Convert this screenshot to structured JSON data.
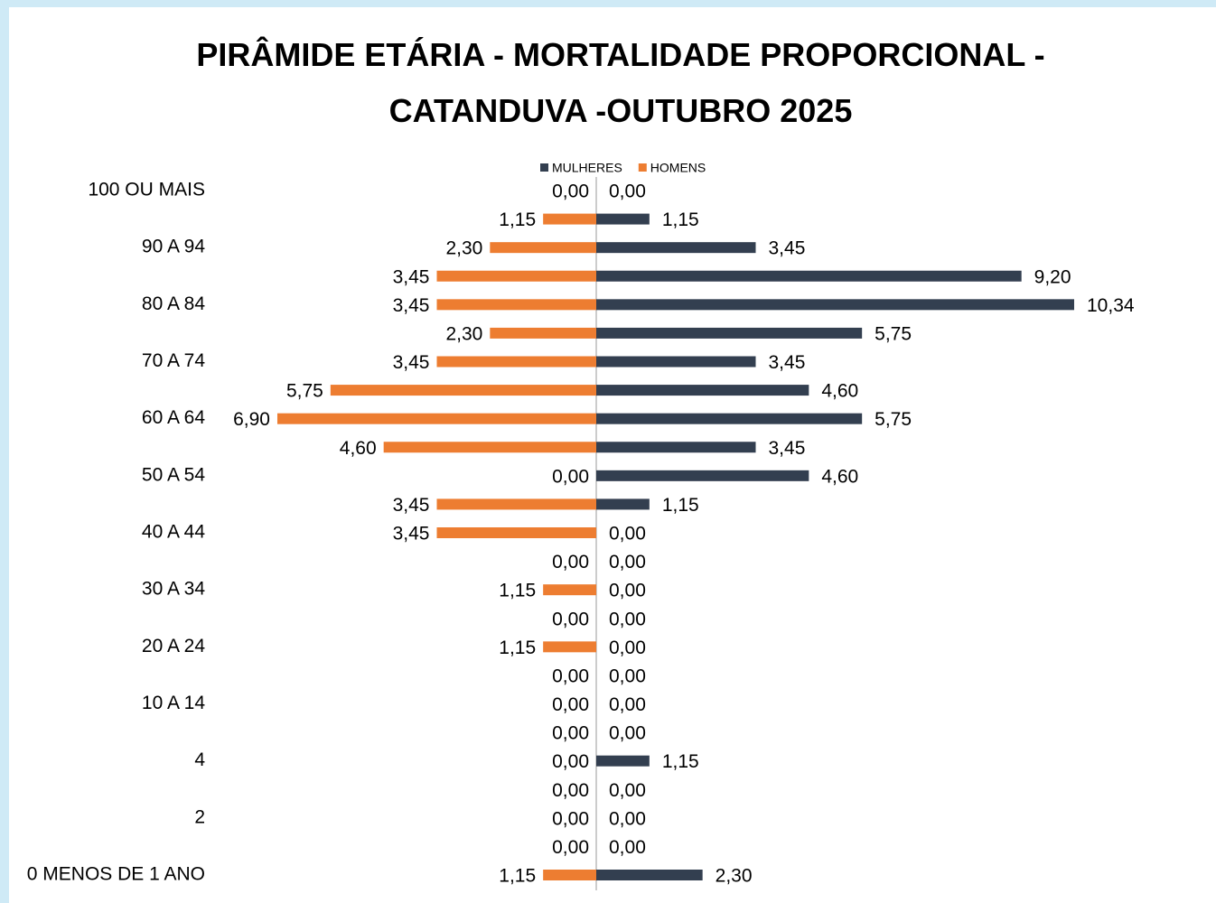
{
  "chart_data": {
    "type": "bar",
    "title": "PIRÂMIDE ETÁRIA - MORTALIDADE PROPORCIONAL - CATANDUVA -OUTUBRO 2025",
    "categories": [
      "100 OU MAIS",
      null,
      "90 A 94",
      null,
      "80 A 84",
      null,
      "70 A 74",
      null,
      "60 A 64",
      null,
      "50 A 54",
      null,
      "40 A 44",
      null,
      "30 A 34",
      null,
      "20 A 24",
      null,
      "10 A 14",
      null,
      "4",
      null,
      "2",
      null,
      "0 MENOS DE 1 ANO"
    ],
    "series": [
      {
        "name": "MULHERES",
        "color": "#333f50",
        "values": [
          0,
          1.15,
          3.45,
          9.2,
          10.34,
          5.75,
          3.45,
          4.6,
          5.75,
          3.45,
          4.6,
          1.15,
          0,
          0,
          0,
          0,
          0,
          0,
          0,
          0,
          1.15,
          0,
          0,
          0,
          2.3
        ],
        "value_labels": [
          "0,00",
          "1,15",
          "3,45",
          "9,20",
          "10,34",
          "5,75",
          "3,45",
          "4,60",
          "5,75",
          "3,45",
          "4,60",
          "1,15",
          "0,00",
          "0,00",
          "0,00",
          "0,00",
          "0,00",
          "0,00",
          "0,00",
          "0,00",
          "1,15",
          "0,00",
          "0,00",
          "0,00",
          "2,30"
        ]
      },
      {
        "name": "HOMENS",
        "color": "#ed7d31",
        "values": [
          0,
          1.15,
          2.3,
          3.45,
          3.45,
          2.3,
          3.45,
          5.75,
          6.9,
          4.6,
          0,
          3.45,
          3.45,
          0,
          1.15,
          0,
          1.15,
          0,
          0,
          0,
          0,
          0,
          0,
          0,
          1.15
        ],
        "value_labels": [
          "0,00",
          "1,15",
          "2,30",
          "3,45",
          "3,45",
          "2,30",
          "3,45",
          "5,75",
          "6,90",
          "4,60",
          "0,00",
          "3,45",
          "3,45",
          "0,00",
          "1,15",
          "0,00",
          "1,15",
          "0,00",
          "0,00",
          "0,00",
          "0,00",
          "0,00",
          "0,00",
          "0,00",
          "1,15"
        ]
      }
    ]
  }
}
